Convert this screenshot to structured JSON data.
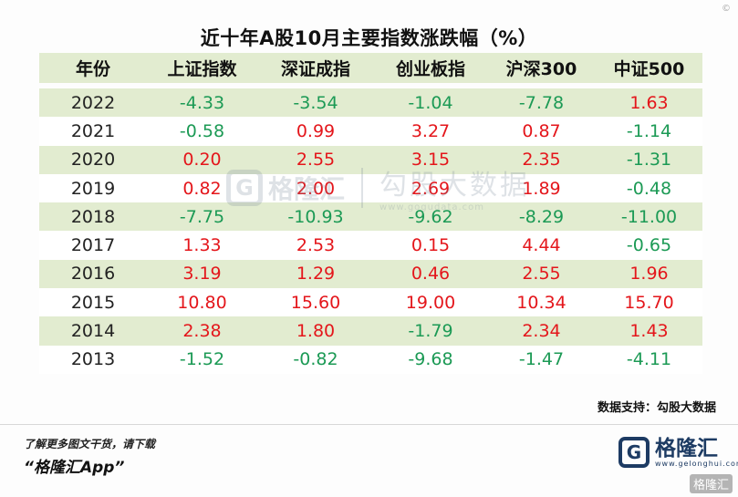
{
  "title": "近十年A股10月主要指数涨跌幅（%）",
  "columns": [
    "年份",
    "上证指数",
    "深证成指",
    "创业板指",
    "沪深300",
    "中证500"
  ],
  "rows": [
    {
      "year": "2022",
      "values": [
        "-4.33",
        "-3.54",
        "-1.04",
        "-7.78",
        "1.63"
      ]
    },
    {
      "year": "2021",
      "values": [
        "-0.58",
        "0.99",
        "3.27",
        "0.87",
        "-1.14"
      ]
    },
    {
      "year": "2020",
      "values": [
        "0.20",
        "2.55",
        "3.15",
        "2.35",
        "-1.31"
      ]
    },
    {
      "year": "2019",
      "values": [
        "0.82",
        "2.00",
        "2.69",
        "1.89",
        "-0.48"
      ]
    },
    {
      "year": "2018",
      "values": [
        "-7.75",
        "-10.93",
        "-9.62",
        "-8.29",
        "-11.00"
      ]
    },
    {
      "year": "2017",
      "values": [
        "1.33",
        "2.53",
        "0.15",
        "4.44",
        "-0.65"
      ]
    },
    {
      "year": "2016",
      "values": [
        "3.19",
        "1.29",
        "0.46",
        "2.55",
        "1.96"
      ]
    },
    {
      "year": "2015",
      "values": [
        "10.80",
        "15.60",
        "19.00",
        "10.34",
        "15.70"
      ]
    },
    {
      "year": "2014",
      "values": [
        "2.38",
        "1.80",
        "-1.79",
        "2.34",
        "1.43"
      ]
    },
    {
      "year": "2013",
      "values": [
        "-1.52",
        "-0.82",
        "-9.68",
        "-1.47",
        "-4.11"
      ]
    }
  ],
  "colors": {
    "positive": "#e4161b",
    "negative": "#1c9a55",
    "band": "#e2ecd0"
  },
  "watermark": {
    "brand": "格隆汇",
    "data_brand": "勾股大数据",
    "url": "www.gogudata.com",
    "icon": "g-logo-icon"
  },
  "source": "数据支持：勾股大数据",
  "promo": {
    "line1": "了解更多图文干货，请下载",
    "line2": "“格隆汇App”"
  },
  "logo": {
    "name": "格隆汇",
    "url": "www.gelonghui.com",
    "icon": "g-logo-icon"
  },
  "corner_tag": "格隆汇",
  "corner_mark": "©"
}
